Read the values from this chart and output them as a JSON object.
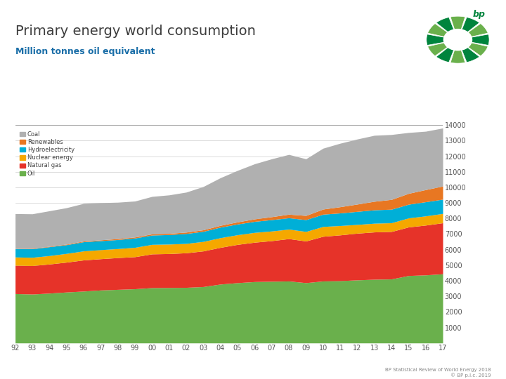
{
  "title": "Primary energy world consumption",
  "subtitle": "Million tonnes oil equivalent",
  "years": [
    1992,
    1993,
    1994,
    1995,
    1996,
    1997,
    1998,
    1999,
    2000,
    2001,
    2002,
    2003,
    2004,
    2005,
    2006,
    2007,
    2008,
    2009,
    2010,
    2011,
    2012,
    2013,
    2014,
    2015,
    2016,
    2017
  ],
  "oil": [
    3170,
    3140,
    3200,
    3270,
    3330,
    3400,
    3440,
    3480,
    3550,
    3560,
    3570,
    3620,
    3780,
    3870,
    3940,
    3960,
    3980,
    3870,
    3980,
    4000,
    4050,
    4090,
    4110,
    4330,
    4370,
    4440
  ],
  "natural_gas": [
    1820,
    1830,
    1870,
    1920,
    2000,
    2010,
    2040,
    2060,
    2170,
    2180,
    2220,
    2290,
    2360,
    2460,
    2530,
    2610,
    2720,
    2680,
    2870,
    2940,
    3000,
    3040,
    3050,
    3120,
    3200,
    3280
  ],
  "nuclear": [
    530,
    530,
    540,
    560,
    580,
    580,
    580,
    600,
    610,
    610,
    600,
    610,
    620,
    620,
    630,
    620,
    610,
    610,
    630,
    600,
    560,
    560,
    560,
    580,
    590,
    596
  ],
  "hydro": [
    530,
    550,
    570,
    560,
    590,
    580,
    580,
    600,
    600,
    610,
    640,
    650,
    680,
    690,
    710,
    730,
    730,
    760,
    790,
    810,
    840,
    860,
    870,
    880,
    910,
    918
  ],
  "renewables": [
    20,
    25,
    30,
    38,
    45,
    53,
    60,
    66,
    73,
    80,
    90,
    100,
    115,
    135,
    160,
    190,
    230,
    270,
    330,
    400,
    470,
    550,
    630,
    700,
    780,
    845
  ],
  "coal": [
    2240,
    2220,
    2280,
    2340,
    2420,
    2390,
    2340,
    2310,
    2410,
    2470,
    2570,
    2780,
    3060,
    3310,
    3540,
    3720,
    3840,
    3640,
    3910,
    4080,
    4180,
    4240,
    4170,
    3910,
    3750,
    3730
  ],
  "colors": {
    "oil": "#6ab04c",
    "natural_gas": "#e63329",
    "nuclear": "#f5a800",
    "hydro": "#00afd7",
    "renewables": "#e87722",
    "coal": "#b0b0b0"
  },
  "legend_labels": [
    "Coal",
    "Renewables",
    "Hydroelectricity",
    "Nuclear energy",
    "Natural gas",
    "Oil"
  ],
  "ylim": [
    0,
    14000
  ],
  "yticks": [
    1000,
    2000,
    3000,
    4000,
    5000,
    6000,
    7000,
    8000,
    9000,
    10000,
    11000,
    12000,
    13000,
    14000
  ],
  "footer_line1": "BP Statistical Review of World Energy 2018",
  "footer_line2": "© BP p.l.c. 2019",
  "background_color": "#ffffff",
  "title_color": "#3c3c3c",
  "subtitle_color": "#1a6ea8"
}
